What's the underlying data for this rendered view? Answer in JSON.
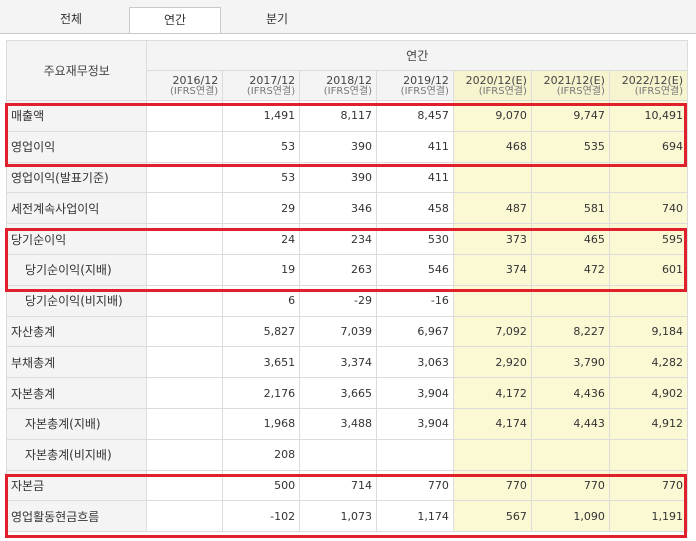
{
  "tabs": [
    {
      "label": "전체",
      "active": false
    },
    {
      "label": "연간",
      "active": true
    },
    {
      "label": "분기",
      "active": false
    }
  ],
  "table": {
    "row_header": "주요재무정보",
    "period_header": "연간",
    "columns": [
      {
        "year": "2016/12",
        "basis": "(IFRS연결)",
        "estimate": false
      },
      {
        "year": "2017/12",
        "basis": "(IFRS연결)",
        "estimate": false
      },
      {
        "year": "2018/12",
        "basis": "(IFRS연결)",
        "estimate": false
      },
      {
        "year": "2019/12",
        "basis": "(IFRS연결)",
        "estimate": false
      },
      {
        "year": "2020/12(E)",
        "basis": "(IFRS연결)",
        "estimate": true
      },
      {
        "year": "2021/12(E)",
        "basis": "(IFRS연결)",
        "estimate": true
      },
      {
        "year": "2022/12(E)",
        "basis": "(IFRS연결)",
        "estimate": true
      }
    ],
    "rows": [
      {
        "label": "매출액",
        "indent": false,
        "values": [
          "",
          "1,491",
          "8,117",
          "8,457",
          "9,070",
          "9,747",
          "10,491"
        ]
      },
      {
        "label": "영업이익",
        "indent": false,
        "values": [
          "",
          "53",
          "390",
          "411",
          "468",
          "535",
          "694"
        ]
      },
      {
        "label": "영업이익(발표기준)",
        "indent": false,
        "values": [
          "",
          "53",
          "390",
          "411",
          "",
          "",
          ""
        ]
      },
      {
        "label": "세전계속사업이익",
        "indent": false,
        "values": [
          "",
          "29",
          "346",
          "458",
          "487",
          "581",
          "740"
        ]
      },
      {
        "label": "당기순이익",
        "indent": false,
        "values": [
          "",
          "24",
          "234",
          "530",
          "373",
          "465",
          "595"
        ]
      },
      {
        "label": "당기순이익(지배)",
        "indent": true,
        "values": [
          "",
          "19",
          "263",
          "546",
          "374",
          "472",
          "601"
        ]
      },
      {
        "label": "당기순이익(비지배)",
        "indent": true,
        "values": [
          "",
          "6",
          "-29",
          "-16",
          "",
          "",
          ""
        ]
      },
      {
        "label": "자산총계",
        "indent": false,
        "values": [
          "",
          "5,827",
          "7,039",
          "6,967",
          "7,092",
          "8,227",
          "9,184"
        ]
      },
      {
        "label": "부채총계",
        "indent": false,
        "values": [
          "",
          "3,651",
          "3,374",
          "3,063",
          "2,920",
          "3,790",
          "4,282"
        ]
      },
      {
        "label": "자본총계",
        "indent": false,
        "values": [
          "",
          "2,176",
          "3,665",
          "3,904",
          "4,172",
          "4,436",
          "4,902"
        ]
      },
      {
        "label": "자본총계(지배)",
        "indent": true,
        "values": [
          "",
          "1,968",
          "3,488",
          "3,904",
          "4,174",
          "4,443",
          "4,912"
        ]
      },
      {
        "label": "자본총계(비지배)",
        "indent": true,
        "values": [
          "",
          "208",
          "",
          "",
          "",
          "",
          ""
        ]
      },
      {
        "label": "자본금",
        "indent": false,
        "values": [
          "",
          "500",
          "714",
          "770",
          "770",
          "770",
          "770"
        ]
      },
      {
        "label": "영업활동현금흐름",
        "indent": false,
        "values": [
          "",
          "-102",
          "1,073",
          "1,174",
          "567",
          "1,090",
          "1,191"
        ]
      }
    ]
  },
  "colors": {
    "highlight_border": "#e0202a",
    "estimate_bg": "#fbf8d4",
    "negative_text": "#e02020",
    "label_bg": "#f4f4f4"
  }
}
